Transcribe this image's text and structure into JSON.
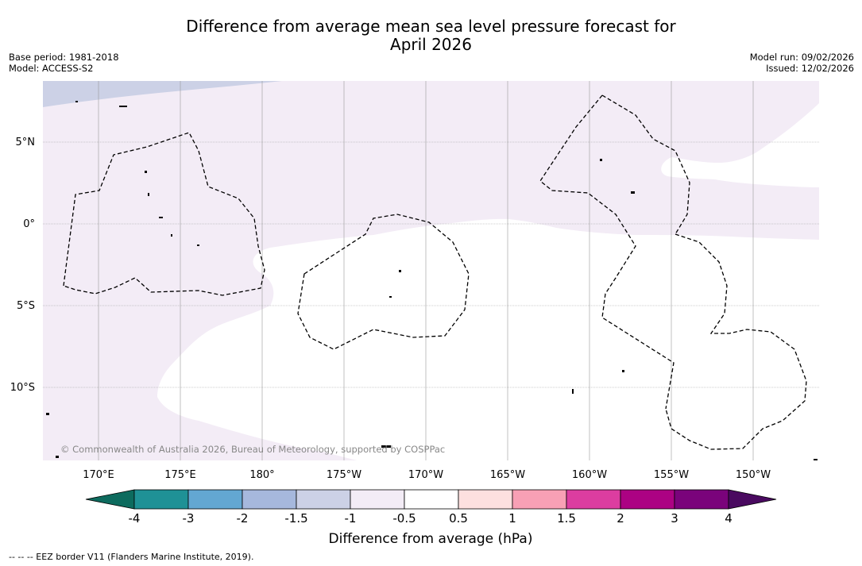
{
  "title": {
    "line1": "Difference from average mean sea level pressure forecast for",
    "line2": "April 2026"
  },
  "meta": {
    "base_period": "Base period: 1981-2018",
    "model": "Model: ACCESS-S2",
    "model_run": "Model run: 09/02/2026",
    "issued": "Issued: 12/02/2026"
  },
  "map": {
    "lat_labels": [
      "5°N",
      "0°",
      "5°S",
      "10°S"
    ],
    "lon_labels": [
      "170°E",
      "175°E",
      "180°",
      "175°W",
      "170°W",
      "165°W",
      "160°W",
      "155°W",
      "150°W"
    ],
    "copyright": "© Commonwealth of Australia 2026, Bureau of Meteorology, supported by COSPPac"
  },
  "colorbar": {
    "label": "Difference from average (hPa)",
    "ticks": [
      "-4",
      "-3",
      "-2",
      "-1.5",
      "-1",
      "-0.5",
      "0.5",
      "1",
      "1.5",
      "2",
      "3",
      "4"
    ],
    "low_extend_color": "#0d6b5e",
    "high_extend_color": "#4a0a60",
    "colors": [
      "#1f9196",
      "#63a7d2",
      "#a6b8dd",
      "#ccd1e6",
      "#f3ecf6",
      "#ffffff",
      "#fde0df",
      "#f8a0b5",
      "#dc3da0",
      "#ac0283",
      "#7a037b"
    ]
  },
  "footer": {
    "legend_text": "--  --  -- EEZ border V11 (Flanders Marine Institute, 2019)."
  },
  "colors": {
    "pale_lavender": "#f3ecf6",
    "light_blue_gray": "#ccd1e6",
    "grid": "#999999"
  }
}
